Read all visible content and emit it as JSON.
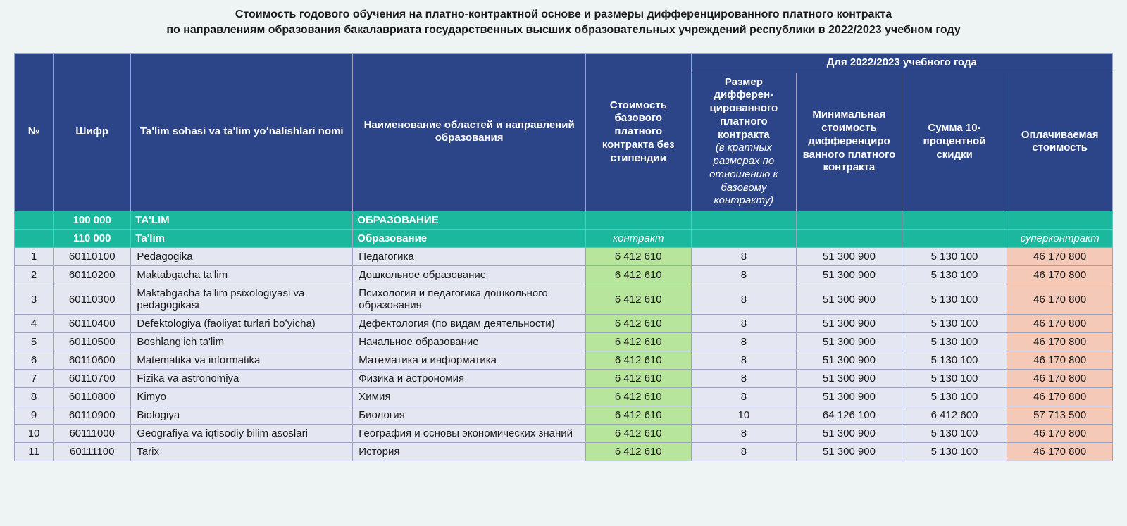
{
  "title_line1": "Стоимость годового обучения на платно-контрактной основе и размеры дифференцированного платного контракта",
  "title_line2": "по направлениям образования бакалавриата государственных высших образовательных учреждений республики в 2022/2023 учебном году",
  "header": {
    "num": "№",
    "code": "Шифр",
    "uz": "Ta'lim sohasi va ta'lim yoʻnalishlari nomi",
    "ru": "Наименование областей и направлений образования",
    "cost": "Стоимость базового платного контракта без стипендии",
    "top_span": "Для 2022/2023 учебного года",
    "mult_main": "Размер дифферен-цированного платного контракта",
    "mult_sub": "(в кратных размерах по отношению к базовому контракту)",
    "min": "Минимальная стоимость дифференциро ванного платного контракта",
    "disc": "Сумма 10-процентной скидки",
    "pay": "Оплачиваемая стоимость"
  },
  "section1": {
    "code": "100 000",
    "uz": "TA'LIM",
    "ru": "ОБРАЗОВАНИЕ"
  },
  "section2": {
    "code": "110 000",
    "uz": "Ta'lim",
    "ru": "Образование",
    "cost_label": "контракт",
    "pay_label": "суперконтракт"
  },
  "rows": [
    {
      "n": "1",
      "code": "60110100",
      "uz": " Pedagogika",
      "ru": "Педагогика",
      "cost": "6 412 610",
      "mult": "8",
      "min": "51 300 900",
      "disc": "5 130 100",
      "pay": "46 170 800"
    },
    {
      "n": "2",
      "code": "60110200",
      "uz": " Maktabgacha ta'lim",
      "ru": "Дошкольное образование",
      "cost": "6 412 610",
      "mult": "8",
      "min": "51 300 900",
      "disc": "5 130 100",
      "pay": "46 170 800"
    },
    {
      "n": "3",
      "code": "60110300",
      "uz": " Maktabgacha ta'lim psixologiyasi va pedagogikasi",
      "ru": "Психология и педагогика дошкольного образования",
      "cost": "6 412 610",
      "mult": "8",
      "min": "51 300 900",
      "disc": "5 130 100",
      "pay": "46 170 800"
    },
    {
      "n": "4",
      "code": "60110400",
      "uz": " Defektologiya (faoliyat turlari boʻyicha)",
      "ru": "Дефектология (по видам деятельности)",
      "cost": "6 412 610",
      "mult": "8",
      "min": "51 300 900",
      "disc": "5 130 100",
      "pay": "46 170 800"
    },
    {
      "n": "5",
      "code": "60110500",
      "uz": " Boshlangʻich ta'lim",
      "ru": "Начальное образование",
      "cost": "6 412 610",
      "mult": "8",
      "min": "51 300 900",
      "disc": "5 130 100",
      "pay": "46 170 800"
    },
    {
      "n": "6",
      "code": "60110600",
      "uz": " Matematika va informatika",
      "ru": "Математика и информатика",
      "cost": "6 412 610",
      "mult": "8",
      "min": "51 300 900",
      "disc": "5 130 100",
      "pay": "46 170 800"
    },
    {
      "n": "7",
      "code": "60110700",
      "uz": " Fizika va astronomiya",
      "ru": "Физика и астрономия",
      "cost": "6 412 610",
      "mult": "8",
      "min": "51 300 900",
      "disc": "5 130 100",
      "pay": "46 170 800"
    },
    {
      "n": "8",
      "code": "60110800",
      "uz": " Kimyo",
      "ru": "Химия",
      "cost": "6 412 610",
      "mult": "8",
      "min": "51 300 900",
      "disc": "5 130 100",
      "pay": "46 170 800"
    },
    {
      "n": "9",
      "code": "60110900",
      "uz": " Biologiya",
      "ru": "Биология",
      "cost": "6 412 610",
      "mult": "10",
      "min": "64 126 100",
      "disc": "6 412 600",
      "pay": "57 713 500"
    },
    {
      "n": "10",
      "code": "60111000",
      "uz": " Geografiya va iqtisodiy bilim asoslari",
      "ru": "География и основы экономических знаний",
      "cost": "6 412 610",
      "mult": "8",
      "min": "51 300 900",
      "disc": "5 130 100",
      "pay": "46 170 800"
    },
    {
      "n": "11",
      "code": "60111100",
      "uz": " Tarix",
      "ru": "История",
      "cost": "6 412 610",
      "mult": "8",
      "min": "51 300 900",
      "disc": "5 130 100",
      "pay": "46 170 800"
    }
  ],
  "colors": {
    "header_bg": "#2c4488",
    "section_bg": "#1bb89e",
    "row_bg": "#e4e7f1",
    "cost_bg": "#b7e59b",
    "pay_bg": "#f4c9b7",
    "border": "#9aa4c0",
    "page_bg": "#eef4f3"
  }
}
